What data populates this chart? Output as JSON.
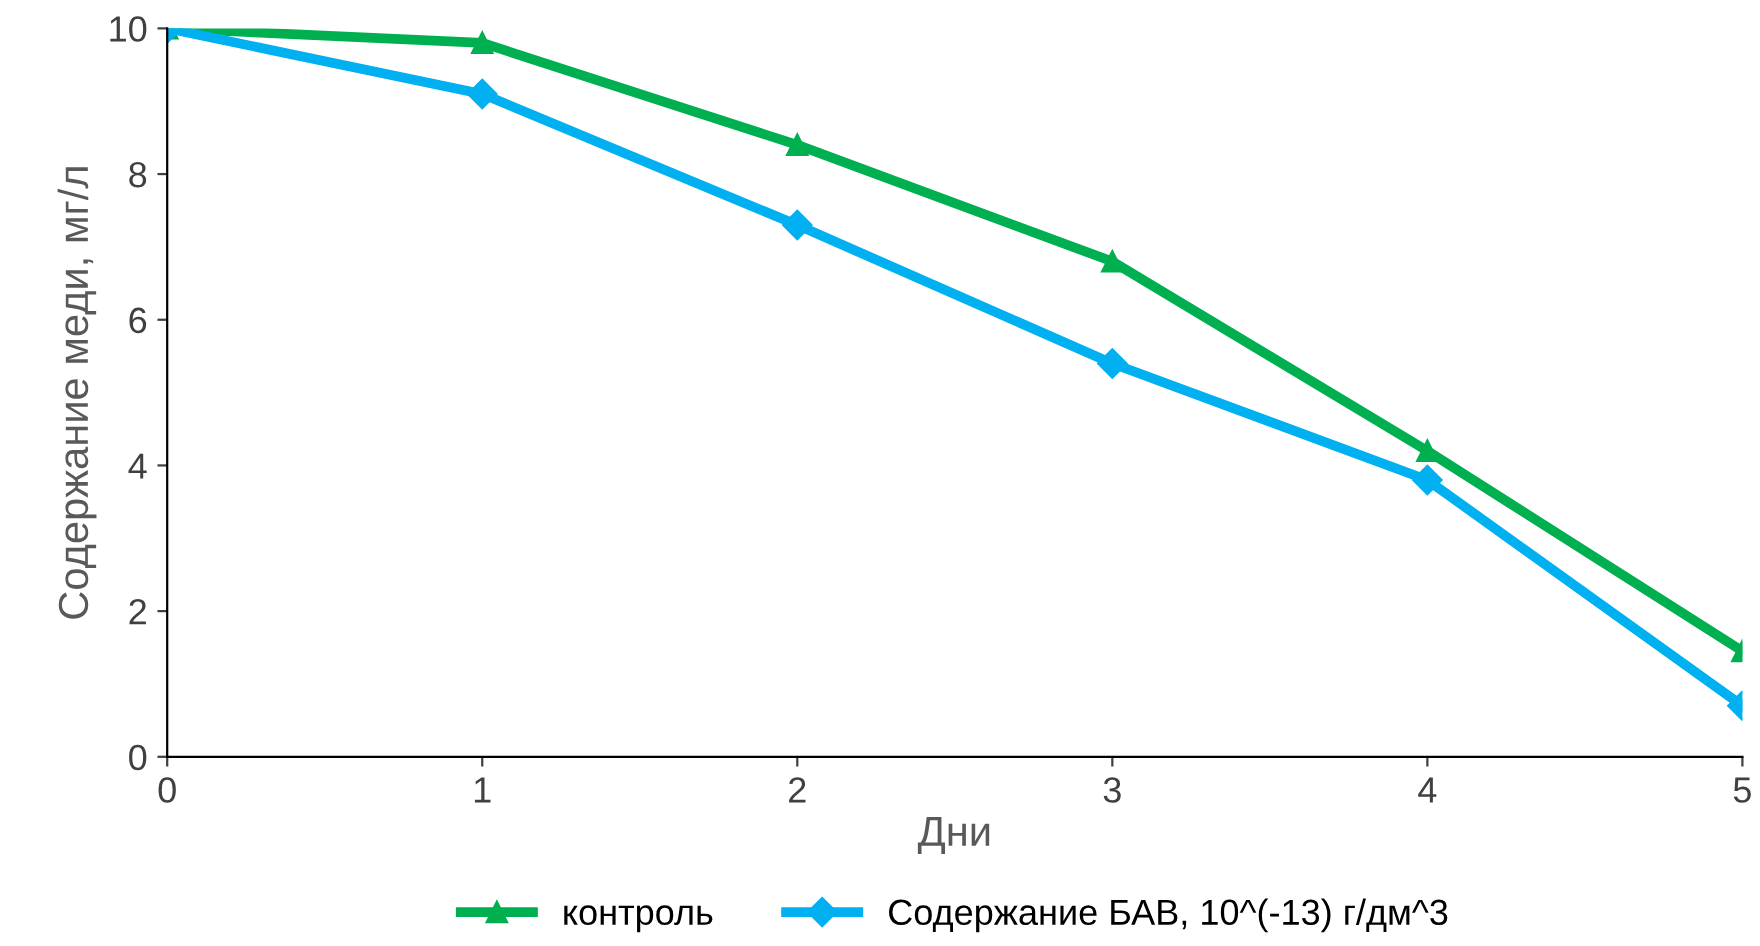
{
  "chart_data": {
    "type": "line",
    "xlabel": "Дни",
    "ylabel": "Содержание меди, мг/л",
    "x": [
      0,
      1,
      2,
      3,
      4,
      5
    ],
    "series": [
      {
        "name": "контроль",
        "color": "#00b050",
        "marker": "triangle",
        "values": [
          10,
          9.8,
          8.4,
          6.8,
          4.2,
          1.45
        ]
      },
      {
        "name": "Содержание БАВ, 10^(-13) г/дм^3",
        "color": "#00b0f0",
        "marker": "diamond",
        "values": [
          10,
          9.1,
          7.3,
          5.4,
          3.8,
          0.7
        ]
      }
    ],
    "xlim": [
      0,
      5
    ],
    "xticks": [
      0,
      1,
      2,
      3,
      4,
      5
    ],
    "ylim": [
      0,
      10
    ],
    "yticks": [
      0,
      2,
      4,
      6,
      8,
      10
    ],
    "grid": false,
    "legend": "bottom",
    "line_style": "solid"
  }
}
